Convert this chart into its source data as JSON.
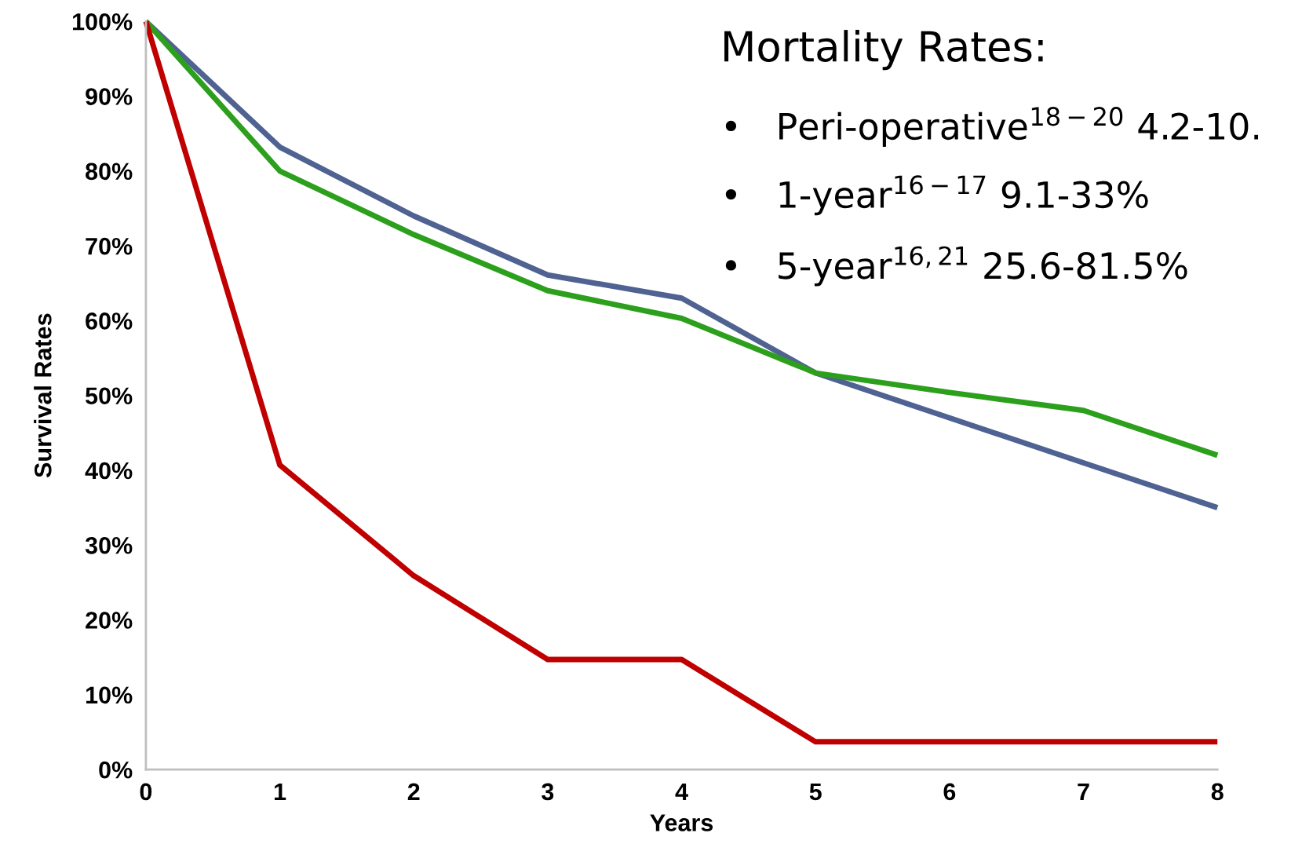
{
  "chart_data": {
    "type": "line",
    "xlabel": "Years",
    "ylabel": "Survival Rates",
    "x": [
      0,
      1,
      2,
      3,
      4,
      5,
      6,
      7,
      8
    ],
    "series": [
      {
        "color": "#4f6291",
        "values": [
          100,
          83.2,
          74,
          66.1,
          63,
          53,
          47,
          41,
          35
        ]
      },
      {
        "color": "#2ca01c",
        "values": [
          100,
          80,
          71.5,
          64,
          60.3,
          53,
          50.4,
          48,
          42
        ]
      },
      {
        "color": "#c00000",
        "values": [
          100,
          40.7,
          25.9,
          14.7,
          14.7,
          3.7,
          3.7,
          3.7,
          3.7
        ]
      }
    ],
    "xlim": [
      0,
      8
    ],
    "xticks": [
      0,
      1,
      2,
      3,
      4,
      5,
      6,
      7,
      8
    ],
    "ylim": [
      0,
      100
    ],
    "yticks": [
      {
        "value": 0,
        "label": "0%"
      },
      {
        "value": 10,
        "label": "10%"
      },
      {
        "value": 20,
        "label": "20%"
      },
      {
        "value": 30,
        "label": "30%"
      },
      {
        "value": 40,
        "label": "40%"
      },
      {
        "value": 50,
        "label": "50%"
      },
      {
        "value": 60,
        "label": "60%"
      },
      {
        "value": 70,
        "label": "70%"
      },
      {
        "value": 80,
        "label": "80%"
      },
      {
        "value": 90,
        "label": "90%"
      },
      {
        "value": 100,
        "label": "100%"
      }
    ],
    "grid": false,
    "marker": "none",
    "line_style": "solid",
    "annotations": [
      "Mortality Rates:",
      "•   Peri-operative$^{18−20}$ 4.2-10.",
      "•   1-year$^{16−17}$ 9.1-33%",
      "•   5-year$^{16,21}$ 25.6-81.5%"
    ]
  }
}
